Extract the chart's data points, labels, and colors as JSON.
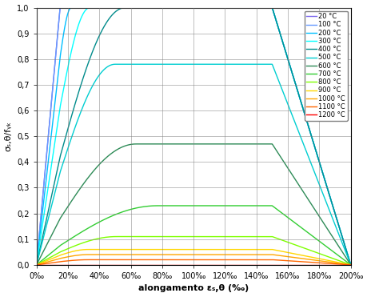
{
  "temperatures": [
    20,
    100,
    200,
    300,
    400,
    500,
    600,
    700,
    800,
    900,
    1000,
    1100,
    1200
  ],
  "colors": [
    "#7B68EE",
    "#6699FF",
    "#00BFFF",
    "#00FFFF",
    "#008B8B",
    "#00CED1",
    "#2E8B57",
    "#32CD32",
    "#7FFF00",
    "#FFD700",
    "#FFA500",
    "#FF6600",
    "#FF0000"
  ],
  "ky_theta": [
    1.0,
    1.0,
    1.0,
    1.0,
    1.0,
    0.78,
    0.47,
    0.23,
    0.11,
    0.06,
    0.04,
    0.02,
    0.0
  ],
  "kp_theta": [
    1.0,
    1.0,
    0.807,
    0.613,
    0.42,
    0.36,
    0.18,
    0.075,
    0.05,
    0.0375,
    0.025,
    0.0125,
    0.0
  ],
  "ep_theta": [
    15,
    15,
    15,
    15,
    15,
    15,
    15,
    15,
    15,
    15,
    15,
    15,
    15
  ],
  "est_theta": [
    150,
    150,
    150,
    150,
    150,
    150,
    150,
    150,
    150,
    150,
    150,
    150,
    150
  ],
  "eu_theta": [
    200,
    200,
    200,
    200,
    200,
    200,
    200,
    200,
    200,
    200,
    200,
    200,
    200
  ],
  "xlim": [
    0,
    200
  ],
  "ylim": [
    0,
    1.0
  ],
  "background_color": "#FFFFFF",
  "legend_labels": [
    "20 C",
    "100 C",
    "200 C",
    "300 C",
    "400 C",
    "500 C",
    "600 C",
    "700 C",
    "800 C",
    "900 C",
    "1000 C",
    "1100 C",
    "1200 C"
  ]
}
